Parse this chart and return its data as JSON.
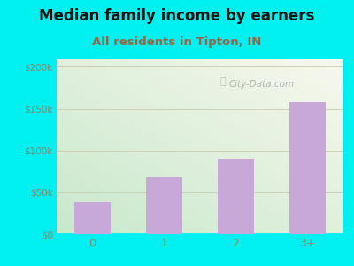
{
  "title": "Median family income by earners",
  "subtitle": "All residents in Tipton, IN",
  "categories": [
    "0",
    "1",
    "2",
    "3+"
  ],
  "values": [
    38000,
    68000,
    90000,
    158000
  ],
  "bar_color": "#c8a8d8",
  "ylim": [
    0,
    210000
  ],
  "yticks": [
    0,
    50000,
    100000,
    150000,
    200000
  ],
  "ytick_labels": [
    "$0",
    "$50k",
    "$100k",
    "$150k",
    "$200k"
  ],
  "background_outer": "#00f0f0",
  "plot_bg_topleft": "#c8e8cc",
  "plot_bg_bottomright": "#f8f8ee",
  "title_color": "#111111",
  "subtitle_color": "#996644",
  "tick_color": "#888866",
  "watermark": "City-Data.com",
  "title_fontsize": 12,
  "subtitle_fontsize": 9.5,
  "grid_color": "#ccccaa",
  "spine_color": "#00f0f0"
}
